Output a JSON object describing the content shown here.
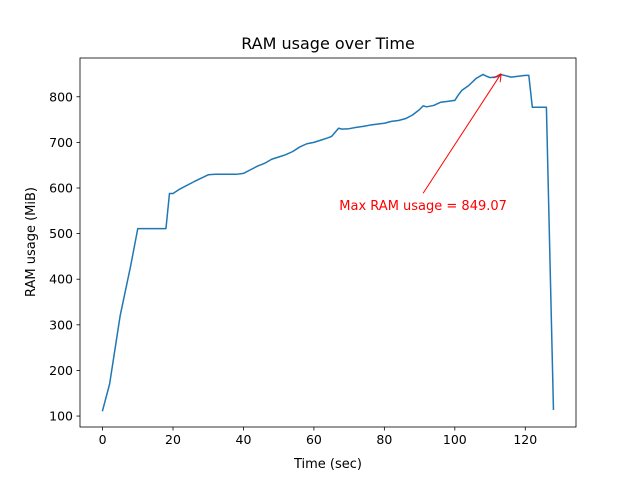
{
  "chart_data": {
    "type": "line",
    "title": "RAM usage over Time",
    "xlabel": "Time (sec)",
    "ylabel": "RAM usage (MiB)",
    "xlim": [
      -6.4,
      134.4
    ],
    "ylim": [
      76,
      885
    ],
    "xticks": [
      0,
      20,
      40,
      60,
      80,
      100,
      120
    ],
    "yticks": [
      100,
      200,
      300,
      400,
      500,
      600,
      700,
      800
    ],
    "grid": false,
    "series": [
      {
        "color": "#1f77b4",
        "x": [
          0,
          2,
          4,
          5,
          8,
          10,
          12,
          18,
          19,
          20,
          22,
          26,
          30,
          32,
          34,
          38,
          40,
          42,
          44,
          46,
          48,
          50,
          52,
          54,
          56,
          58,
          60,
          62,
          64,
          65,
          66,
          67,
          68,
          70,
          72,
          74,
          76,
          78,
          80,
          82,
          84,
          86,
          88,
          89,
          90,
          91,
          92,
          94,
          96,
          98,
          100,
          101,
          102,
          104,
          106,
          108,
          109,
          110,
          112,
          113,
          114,
          116,
          118,
          120,
          121,
          122,
          124,
          126,
          128
        ],
        "y": [
          112,
          170,
          270,
          320,
          430,
          511,
          511,
          511,
          588,
          588,
          598,
          614,
          629,
          630,
          630,
          630,
          632,
          640,
          648,
          654,
          663,
          668,
          673,
          680,
          690,
          697,
          700,
          705,
          710,
          713,
          722,
          731,
          729,
          730,
          733,
          735,
          738,
          740,
          742,
          746,
          748,
          752,
          760,
          766,
          772,
          780,
          778,
          781,
          788,
          790,
          792,
          804,
          814,
          825,
          840,
          849,
          845,
          842,
          844,
          849,
          847,
          843,
          845,
          847,
          847,
          777,
          777,
          777,
          115
        ]
      }
    ],
    "annotation": {
      "text": "Max RAM usage = 849.07",
      "color": "#ff0000",
      "point": [
        113,
        849
      ],
      "text_pos": [
        91,
        560
      ]
    }
  }
}
